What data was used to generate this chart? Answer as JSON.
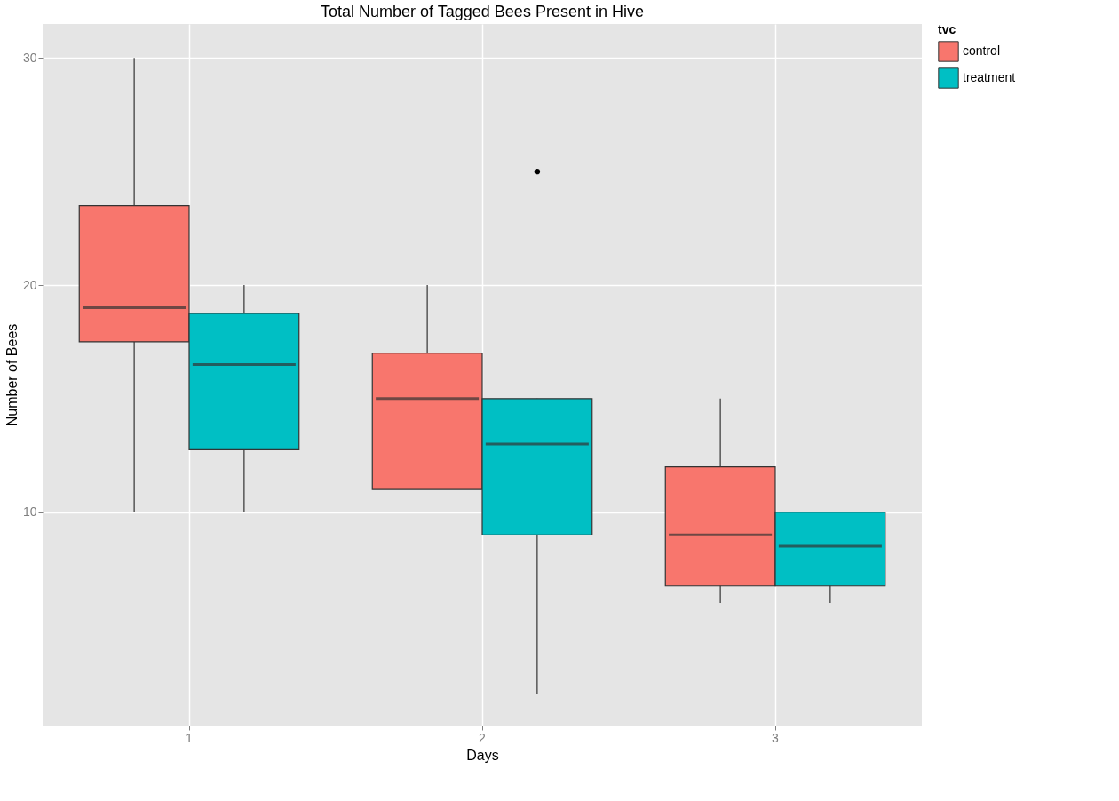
{
  "chart_data": {
    "type": "box",
    "title": "Total Number of Tagged Bees Present in Hive",
    "xlabel": "Days",
    "ylabel": "Number of Bees",
    "legend_title": "tvc",
    "categories": [
      "1",
      "2",
      "3"
    ],
    "series": [
      {
        "name": "control",
        "color": "#f8766d",
        "boxes": [
          {
            "low": 10,
            "q1": 17.5,
            "median": 19,
            "q3": 23.5,
            "high": 30
          },
          {
            "low": 11,
            "q1": 11,
            "median": 15,
            "q3": 17,
            "high": 20
          },
          {
            "low": 6,
            "q1": 6.75,
            "median": 9,
            "q3": 12,
            "high": 15
          }
        ]
      },
      {
        "name": "treatment",
        "color": "#00bfc4",
        "boxes": [
          {
            "low": 10,
            "q1": 12.75,
            "median": 16.5,
            "q3": 18.75,
            "high": 20
          },
          {
            "low": 2,
            "q1": 9,
            "median": 13,
            "q3": 15,
            "high": 15,
            "outliers": [
              25
            ]
          },
          {
            "low": 6,
            "q1": 6.75,
            "median": 8.5,
            "q3": 10,
            "high": 10
          }
        ]
      }
    ],
    "ylim": [
      0.6,
      31.5
    ],
    "yticks": [
      10,
      20,
      30
    ],
    "grid": true,
    "legend": "right"
  }
}
